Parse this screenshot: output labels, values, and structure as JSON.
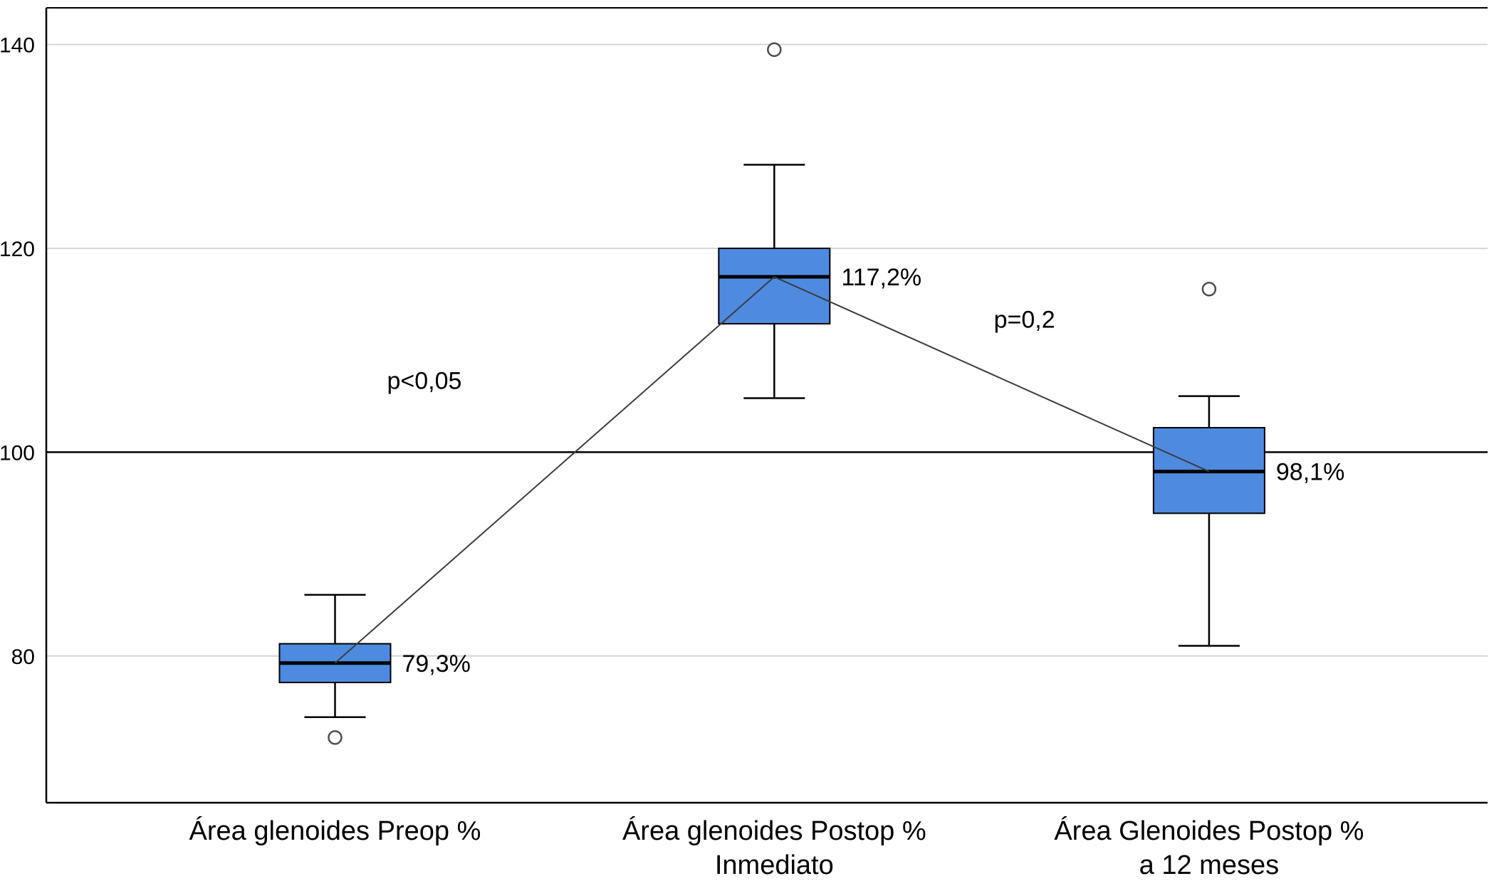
{
  "chart_data": {
    "type": "boxplot",
    "title": "",
    "xlabel": "",
    "ylabel": "",
    "ylim": [
      65.6,
      143.6
    ],
    "yticks": [
      80,
      100,
      120,
      140
    ],
    "reference_line": 100,
    "grid": true,
    "legend": "none",
    "categories": [
      [
        "Área glenoides Preop %"
      ],
      [
        "Área glenoides Postop %",
        "Inmediato"
      ],
      [
        "Área Glenoides Postop %",
        "a 12 meses"
      ]
    ],
    "series": [
      {
        "name": "Área glenoides Preop %",
        "median": 79.3,
        "q1": 77.4,
        "q3": 81.2,
        "whisker_low": 74.0,
        "whisker_high": 86.0,
        "outliers": [
          72.0
        ],
        "median_label": "79,3%"
      },
      {
        "name": "Área glenoides Postop % Inmediato",
        "median": 117.2,
        "q1": 112.6,
        "q3": 120.0,
        "whisker_low": 105.3,
        "whisker_high": 128.2,
        "outliers": [
          139.5
        ],
        "median_label": "117,2%"
      },
      {
        "name": "Área Glenoides Postop % a 12 meses",
        "median": 98.1,
        "q1": 94.0,
        "q3": 102.4,
        "whisker_low": 81.0,
        "whisker_high": 105.5,
        "outliers": [
          116.0
        ],
        "median_label": "98,1%"
      }
    ],
    "connectors": [
      [
        0,
        1
      ],
      [
        1,
        2
      ]
    ],
    "annotations": [
      {
        "text": "p<0,05",
        "x_frac": 0.285,
        "y": 106.2
      },
      {
        "text": "p=0,2",
        "x_frac": 0.688,
        "y": 112.2
      }
    ],
    "colors": {
      "box_fill": "#4e8be0",
      "box_border": "#000000",
      "median": "#000000",
      "whisker": "#000000",
      "gridline": "#d6d6d6",
      "reference_line": "#000000",
      "connector": "#3c3c3c",
      "outlier_stroke": "#4d4d4d",
      "text": "#000000",
      "background": "#ffffff"
    }
  }
}
